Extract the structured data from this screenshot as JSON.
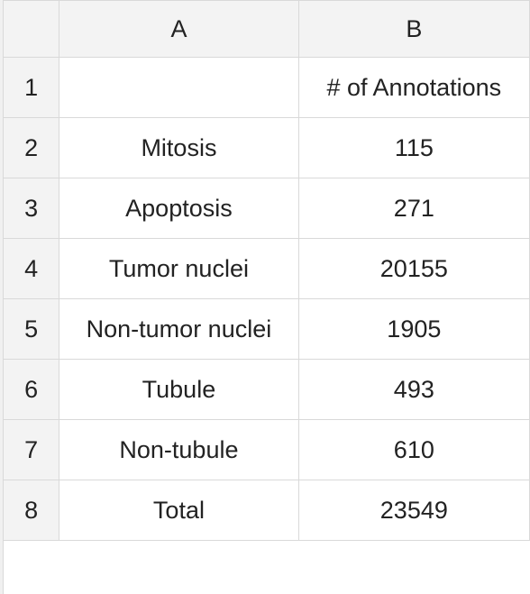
{
  "columns": [
    "A",
    "B"
  ],
  "rows": [
    {
      "index": "1",
      "a": "",
      "b": "# of Annotations"
    },
    {
      "index": "2",
      "a": "Mitosis",
      "b": "115"
    },
    {
      "index": "3",
      "a": "Apoptosis",
      "b": "271"
    },
    {
      "index": "4",
      "a": "Tumor nuclei",
      "b": "20155"
    },
    {
      "index": "5",
      "a": "Non-tumor nuclei",
      "b": "1905"
    },
    {
      "index": "6",
      "a": "Tubule",
      "b": "493"
    },
    {
      "index": "7",
      "a": "Non-tubule",
      "b": "610"
    },
    {
      "index": "8",
      "a": "Total",
      "b": "23549"
    }
  ]
}
